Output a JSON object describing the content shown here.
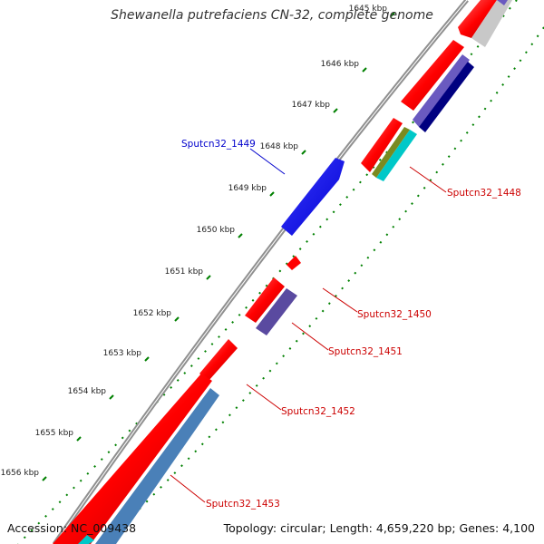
{
  "title": "Shewanella putrefaciens CN-32, complete genome",
  "footer": {
    "accession": "Accession: NC_009438",
    "summary": "Topology: circular; Length: 4,659,220 bp; Genes: 4,100"
  },
  "ticks": [
    {
      "label": "1645 kbp"
    },
    {
      "label": "1646 kbp"
    },
    {
      "label": "1647 kbp"
    },
    {
      "label": "1648 kbp"
    },
    {
      "label": "1649 kbp"
    },
    {
      "label": "1650 kbp"
    },
    {
      "label": "1651 kbp"
    },
    {
      "label": "1652 kbp"
    },
    {
      "label": "1653 kbp"
    },
    {
      "label": "1654 kbp"
    },
    {
      "label": "1655 kbp"
    },
    {
      "label": "1656 kbp"
    }
  ],
  "gene_labels": [
    {
      "text": "Sputcn32_1449",
      "color": "#0000cc"
    },
    {
      "text": "Sputcn32_1448",
      "color": "#cc0000"
    },
    {
      "text": "Sputcn32_1450",
      "color": "#cc0000"
    },
    {
      "text": "Sputcn32_1451",
      "color": "#cc0000"
    },
    {
      "text": "Sputcn32_1452",
      "color": "#cc0000"
    },
    {
      "text": "Sputcn32_1453",
      "color": "#cc0000"
    }
  ],
  "colors": {
    "forward_cds": "#ff0000",
    "highlighted_gene": "#0000ff",
    "backbone": "#808080",
    "gc_dots": "#008000",
    "cog_purple": "#5a4aa0",
    "cog_navy": "#000080",
    "cog_cyan": "#00c8c8",
    "cog_olive": "#7a8a20",
    "cog_steelblue": "#4a80b8",
    "cog_lightgray": "#c8c8c8"
  }
}
